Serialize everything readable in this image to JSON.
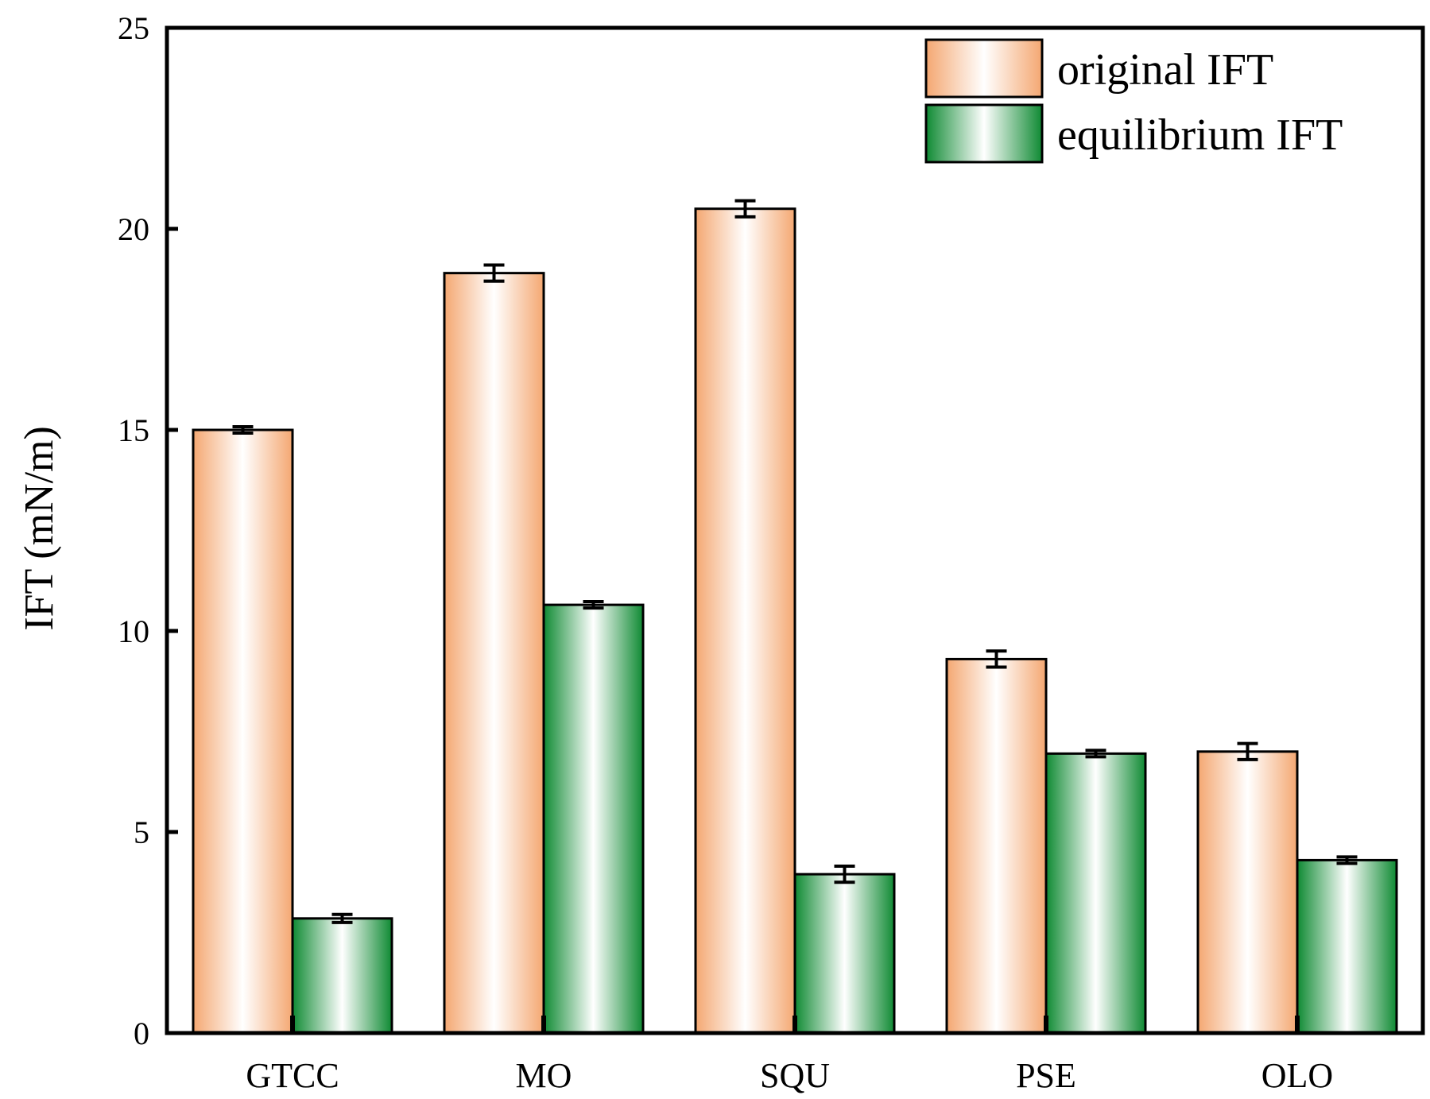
{
  "chart_data": {
    "type": "bar",
    "title": "",
    "xlabel": "",
    "ylabel": "IFT (mN/m)",
    "ylim": [
      0,
      25
    ],
    "yticks": [
      0,
      5,
      10,
      15,
      20,
      25
    ],
    "ytick_labels": [
      "0",
      "5",
      "10",
      "15",
      "20",
      "25"
    ],
    "categories": [
      "GTCC",
      "MO",
      "SQU",
      "PSE",
      "OLO"
    ],
    "series": [
      {
        "name": "original IFT",
        "values": [
          15.0,
          18.9,
          20.5,
          9.3,
          7.0
        ],
        "errors": [
          0.08,
          0.2,
          0.2,
          0.2,
          0.2
        ],
        "color": "#f4a771"
      },
      {
        "name": "equilibrium IFT",
        "values": [
          2.85,
          10.65,
          3.95,
          6.95,
          4.3
        ],
        "errors": [
          0.1,
          0.08,
          0.2,
          0.08,
          0.08
        ],
        "color": "#1a8c3a"
      }
    ],
    "legend_position": "top-right",
    "grid": false
  }
}
